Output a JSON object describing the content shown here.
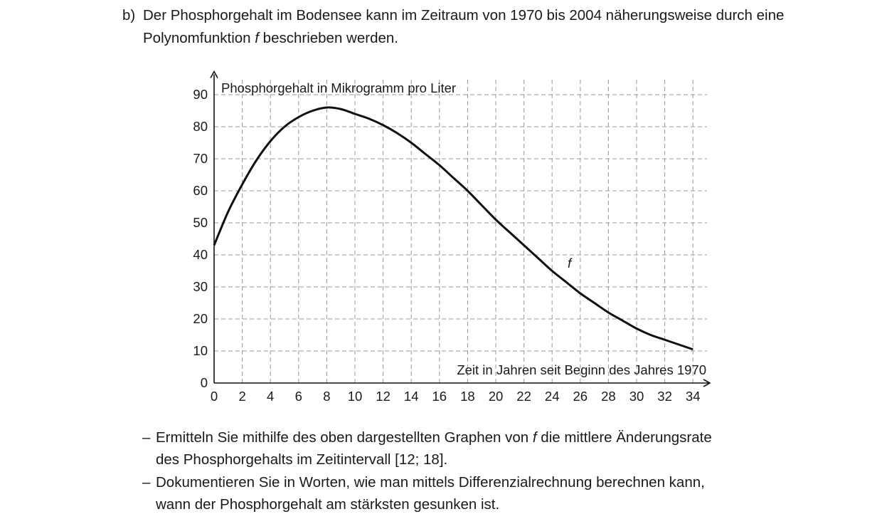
{
  "task_part": {
    "label": "b)",
    "text_before": "Der Phosphorgehalt im Bodensee kann im Zeitraum von 1970 bis 2004 näherungsweise durch eine Polynomfunktion ",
    "function_name": "f",
    "text_after": " beschrieben werden."
  },
  "chart_data": {
    "type": "line",
    "ylabel": "Phosphorgehalt in Mikrogramm pro Liter",
    "xlabel": "Zeit in Jahren seit Beginn des Jahres 1970",
    "xlim": [
      0,
      35
    ],
    "ylim": [
      0,
      95
    ],
    "x_ticks": [
      0,
      2,
      4,
      6,
      8,
      10,
      12,
      14,
      16,
      18,
      20,
      22,
      24,
      26,
      28,
      30,
      32,
      34
    ],
    "y_ticks": [
      0,
      10,
      20,
      30,
      40,
      50,
      60,
      70,
      80,
      90
    ],
    "grid": true,
    "curve_label": "f",
    "series": [
      {
        "name": "f",
        "x": [
          0,
          1,
          2,
          3,
          4,
          5,
          6,
          7,
          8,
          9,
          10,
          11,
          12,
          13,
          14,
          15,
          16,
          17,
          18,
          19,
          20,
          21,
          22,
          23,
          24,
          25,
          26,
          27,
          28,
          29,
          30,
          31,
          32,
          33,
          34
        ],
        "y": [
          43,
          53.5,
          62,
          69.5,
          75.5,
          80,
          83,
          85,
          86,
          85.5,
          84,
          82.5,
          80.5,
          78,
          75,
          71.5,
          68,
          64,
          60,
          55.5,
          51,
          47,
          43,
          39,
          35,
          31.5,
          28,
          25,
          22,
          19.5,
          17,
          15,
          13.5,
          12,
          10.5
        ]
      }
    ]
  },
  "tasks": [
    {
      "dash": "–",
      "text_before": "Ermitteln Sie mithilfe des oben dargestellten Graphen von ",
      "fn": "f",
      "text_after": " die mittlere Änderungsrate",
      "line2": "des Phosphorgehalts im Zeitintervall [12; 18]."
    },
    {
      "dash": "–",
      "text_before": "Dokumentieren Sie in Worten, wie man mittels Differenzialrechnung berechnen kann,",
      "line2": "wann der Phosphorgehalt am stärksten gesunken ist."
    }
  ]
}
